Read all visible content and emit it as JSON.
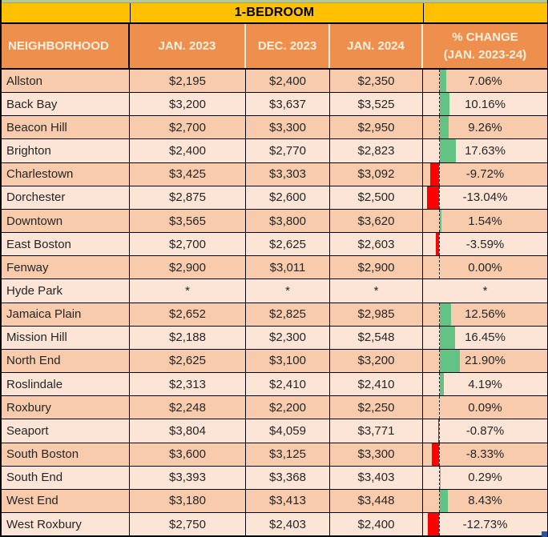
{
  "chart_data": {
    "type": "table",
    "title": "1-BEDROOM",
    "columns": [
      "NEIGHBORHOOD",
      "JAN. 2023",
      "DEC. 2023",
      "JAN. 2024",
      "% CHANGE (JAN. 2023-24)"
    ],
    "pct_change_header": [
      "% CHANGE",
      "(JAN. 2023-24)"
    ],
    "footnote_marker": "*",
    "rows": [
      {
        "name": "Allston",
        "jan_2023": "$2,195",
        "dec_2023": "$2,400",
        "jan_2024": "$2,350",
        "pct_change": 7.06,
        "pct_change_label": "7.06%"
      },
      {
        "name": "Back Bay",
        "jan_2023": "$3,200",
        "dec_2023": "$3,637",
        "jan_2024": "$3,525",
        "pct_change": 10.16,
        "pct_change_label": "10.16%"
      },
      {
        "name": "Beacon Hill",
        "jan_2023": "$2,700",
        "dec_2023": "$3,300",
        "jan_2024": "$2,950",
        "pct_change": 9.26,
        "pct_change_label": "9.26%"
      },
      {
        "name": "Brighton",
        "jan_2023": "$2,400",
        "dec_2023": "$2,770",
        "jan_2024": "$2,823",
        "pct_change": 17.63,
        "pct_change_label": "17.63%"
      },
      {
        "name": "Charlestown",
        "jan_2023": "$3,425",
        "dec_2023": "$3,303",
        "jan_2024": "$3,092",
        "pct_change": -9.72,
        "pct_change_label": "-9.72%"
      },
      {
        "name": "Dorchester",
        "jan_2023": "$2,875",
        "dec_2023": "$2,600",
        "jan_2024": "$2,500",
        "pct_change": -13.04,
        "pct_change_label": "-13.04%"
      },
      {
        "name": "Downtown",
        "jan_2023": "$3,565",
        "dec_2023": "$3,800",
        "jan_2024": "$3,620",
        "pct_change": 1.54,
        "pct_change_label": "1.54%"
      },
      {
        "name": "East Boston",
        "jan_2023": "$2,700",
        "dec_2023": "$2,625",
        "jan_2024": "$2,603",
        "pct_change": -3.59,
        "pct_change_label": "-3.59%"
      },
      {
        "name": "Fenway",
        "jan_2023": "$2,900",
        "dec_2023": "$3,011",
        "jan_2024": "$2,900",
        "pct_change": 0.0,
        "pct_change_label": "0.00%"
      },
      {
        "name": "Hyde Park",
        "jan_2023": "*",
        "dec_2023": "*",
        "jan_2024": "*",
        "pct_change": null,
        "pct_change_label": "*"
      },
      {
        "name": "Jamaica Plain",
        "jan_2023": "$2,652",
        "dec_2023": "$2,825",
        "jan_2024": "$2,985",
        "pct_change": 12.56,
        "pct_change_label": "12.56%"
      },
      {
        "name": "Mission Hill",
        "jan_2023": "$2,188",
        "dec_2023": "$2,300",
        "jan_2024": "$2,548",
        "pct_change": 16.45,
        "pct_change_label": "16.45%"
      },
      {
        "name": "North End",
        "jan_2023": "$2,625",
        "dec_2023": "$3,100",
        "jan_2024": "$3,200",
        "pct_change": 21.9,
        "pct_change_label": "21.90%"
      },
      {
        "name": "Roslindale",
        "jan_2023": "$2,313",
        "dec_2023": "$2,410",
        "jan_2024": "$2,410",
        "pct_change": 4.19,
        "pct_change_label": "4.19%"
      },
      {
        "name": "Roxbury",
        "jan_2023": "$2,248",
        "dec_2023": "$2,200",
        "jan_2024": "$2,250",
        "pct_change": 0.09,
        "pct_change_label": "0.09%"
      },
      {
        "name": "Seaport",
        "jan_2023": "$3,804",
        "dec_2023": "$4,059",
        "jan_2024": "$3,771",
        "pct_change": -0.87,
        "pct_change_label": "-0.87%"
      },
      {
        "name": "South Boston",
        "jan_2023": "$3,600",
        "dec_2023": "$3,125",
        "jan_2024": "$3,300",
        "pct_change": -8.33,
        "pct_change_label": "-8.33%"
      },
      {
        "name": "South End",
        "jan_2023": "$3,393",
        "dec_2023": "$3,368",
        "jan_2024": "$3,403",
        "pct_change": 0.29,
        "pct_change_label": "0.29%"
      },
      {
        "name": "West End",
        "jan_2023": "$3,180",
        "dec_2023": "$3,413",
        "jan_2024": "$3,448",
        "pct_change": 8.43,
        "pct_change_label": "8.43%"
      },
      {
        "name": "West Roxbury",
        "jan_2023": "$2,750",
        "dec_2023": "$2,403",
        "jan_2024": "$2,400",
        "pct_change": -12.73,
        "pct_change_label": "-12.73%"
      }
    ],
    "bar_style": {
      "positive_color": "#63C384",
      "negative_color": "#FF0000",
      "axis": "dashed vertical line, negatives extend left, positives extend right"
    }
  },
  "colors": {
    "title_bg": "#FFC000",
    "header_bg": "#EF8F4D",
    "header_text": "#FAF0DF",
    "row_dark": "#F8CBAD",
    "row_light": "#FCE4D6",
    "grid": "#000000",
    "top_strip": "#B7C890",
    "fill_handle": "#2F5496"
  }
}
